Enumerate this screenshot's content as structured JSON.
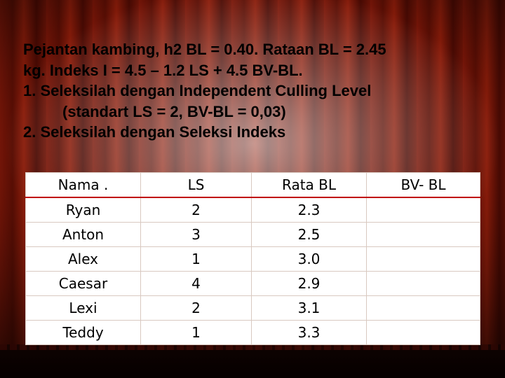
{
  "slide": {
    "lines": [
      "Pejantan kambing, h2 BL = 0.40. Rataan BL = 2.45",
      "kg.  Indeks I = 4.5 – 1.2 LS + 4.5 BV-BL.",
      "1.  Seleksilah dengan Independent Culling Level",
      "(standart LS = 2, BV-BL = 0,03)",
      "2.  Seleksilah dengan Seleksi Indeks"
    ]
  },
  "table": {
    "headers": [
      "Nama .",
      "LS",
      "Rata BL",
      "BV- BL"
    ],
    "rows": [
      [
        "Ryan",
        "2",
        "2.3",
        ""
      ],
      [
        "Anton",
        "3",
        "2.5",
        ""
      ],
      [
        "Alex",
        "1",
        "3.0",
        ""
      ],
      [
        "Caesar",
        "4",
        "2.9",
        ""
      ],
      [
        "Lexi",
        "2",
        "3.1",
        ""
      ],
      [
        "Teddy",
        "1",
        "3.3",
        ""
      ]
    ]
  },
  "colors": {
    "curtain": "#6f1407",
    "header_rule": "#c00000"
  }
}
